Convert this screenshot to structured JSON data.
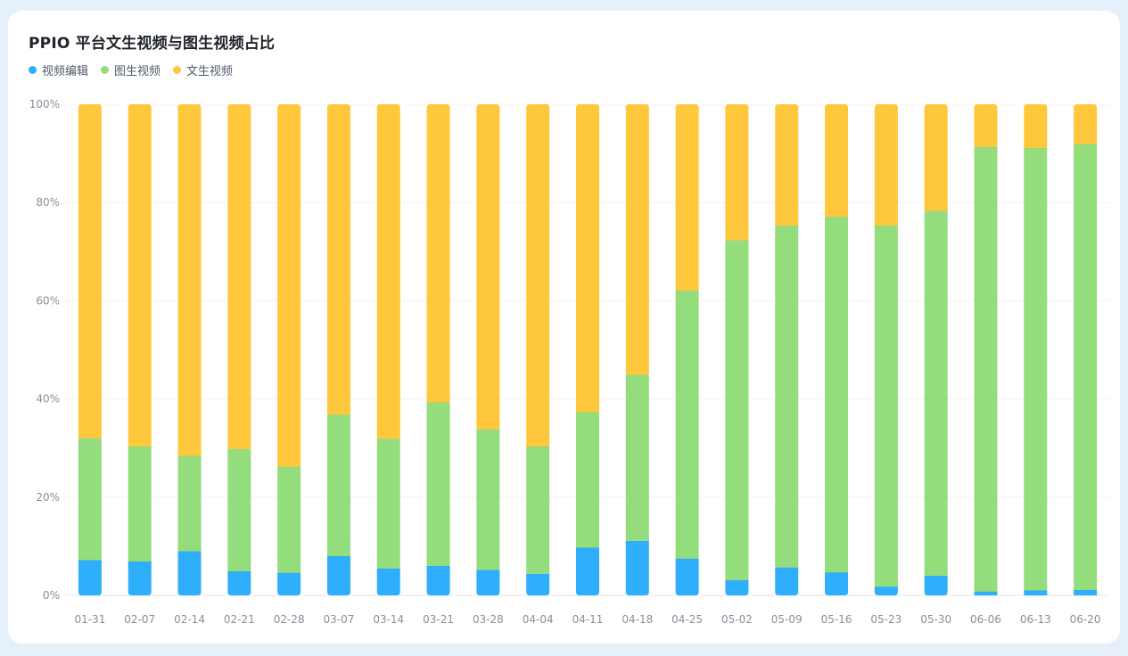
{
  "chart_data": {
    "type": "bar",
    "stacked": true,
    "title": "PPIO 平台文生视频与图生视频占比",
    "categories": [
      "01-31",
      "02-07",
      "02-14",
      "02-21",
      "02-28",
      "03-07",
      "03-14",
      "03-21",
      "03-28",
      "04-04",
      "04-11",
      "04-18",
      "04-25",
      "05-02",
      "05-09",
      "05-16",
      "05-23",
      "05-30",
      "06-06",
      "06-13",
      "06-20"
    ],
    "series": [
      {
        "name": "视频编辑",
        "color": "#2eaefb",
        "values": [
          7.2,
          6.9,
          9.0,
          4.9,
          4.6,
          8.0,
          5.5,
          6.0,
          5.2,
          4.4,
          9.7,
          11.1,
          7.5,
          3.1,
          5.7,
          4.7,
          1.8,
          4.0,
          0.8,
          1.0,
          1.1
        ]
      },
      {
        "name": "图生视频",
        "color": "#93dd7c",
        "values": [
          24.8,
          23.4,
          19.4,
          24.9,
          21.6,
          28.8,
          26.4,
          33.3,
          28.6,
          25.9,
          27.6,
          33.8,
          54.6,
          69.2,
          69.6,
          72.4,
          73.5,
          74.3,
          90.5,
          90.1,
          90.8
        ]
      },
      {
        "name": "文生视频",
        "color": "#ffc73c",
        "values": [
          68.0,
          69.7,
          71.6,
          70.2,
          73.8,
          63.2,
          68.1,
          60.7,
          66.2,
          69.7,
          62.7,
          55.1,
          37.9,
          27.7,
          24.7,
          22.9,
          24.7,
          21.7,
          8.7,
          8.9,
          8.1
        ]
      }
    ],
    "ylim": [
      0,
      100
    ],
    "yticks": [
      "0%",
      "20%",
      "40%",
      "60%",
      "80%",
      "100%"
    ],
    "grid": true,
    "legend_position": "top-left"
  }
}
